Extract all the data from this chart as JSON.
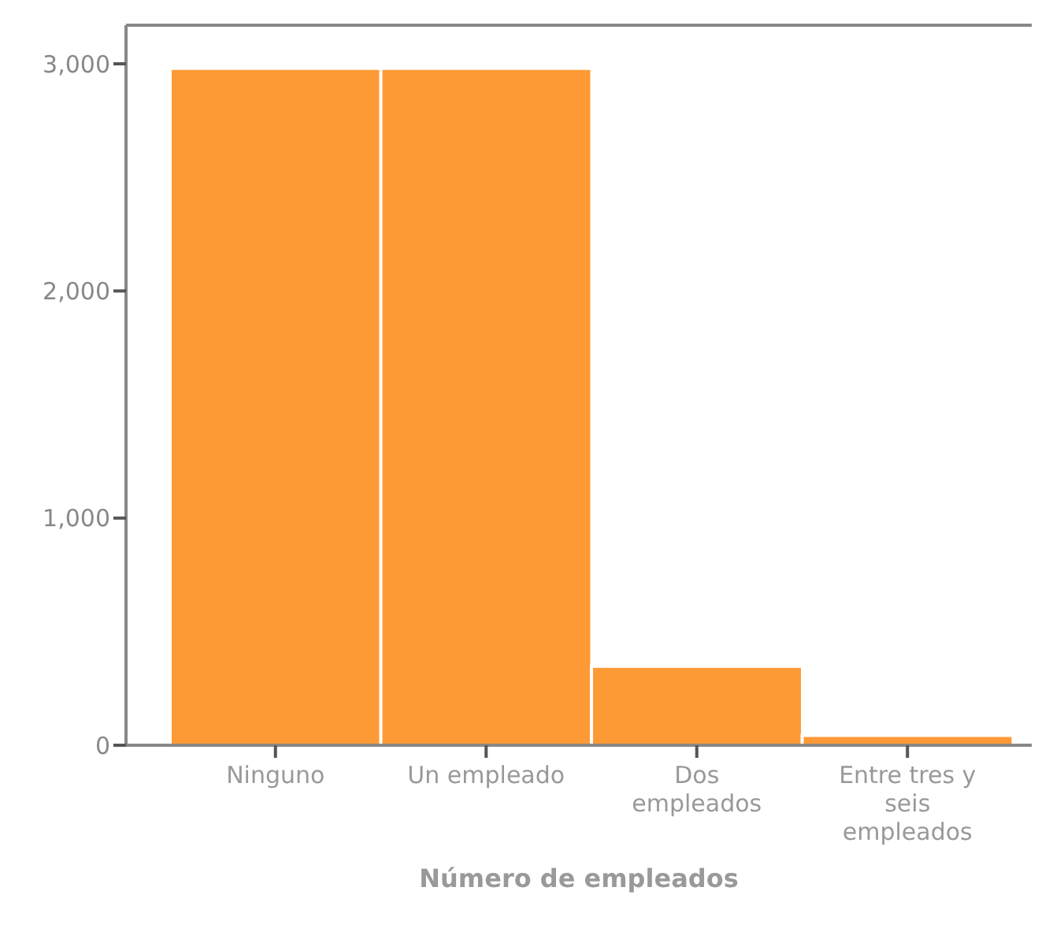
{
  "chart_data": {
    "type": "bar",
    "xlabel": "Número de empleados",
    "categories": [
      "Ninguno",
      "Un empleado",
      "Dos empleados",
      "Entre tres y seis empleados"
    ],
    "values": [
      2980,
      2980,
      348,
      43
    ],
    "color": "#fd9a35",
    "ylim": [
      0,
      3170
    ],
    "yticks": [
      0,
      {
        "value": 1000,
        "label": "1,000"
      },
      {
        "value": 2000,
        "label": "2,000"
      },
      {
        "value": 3000,
        "label": "3,000"
      }
    ],
    "grid": false
  }
}
